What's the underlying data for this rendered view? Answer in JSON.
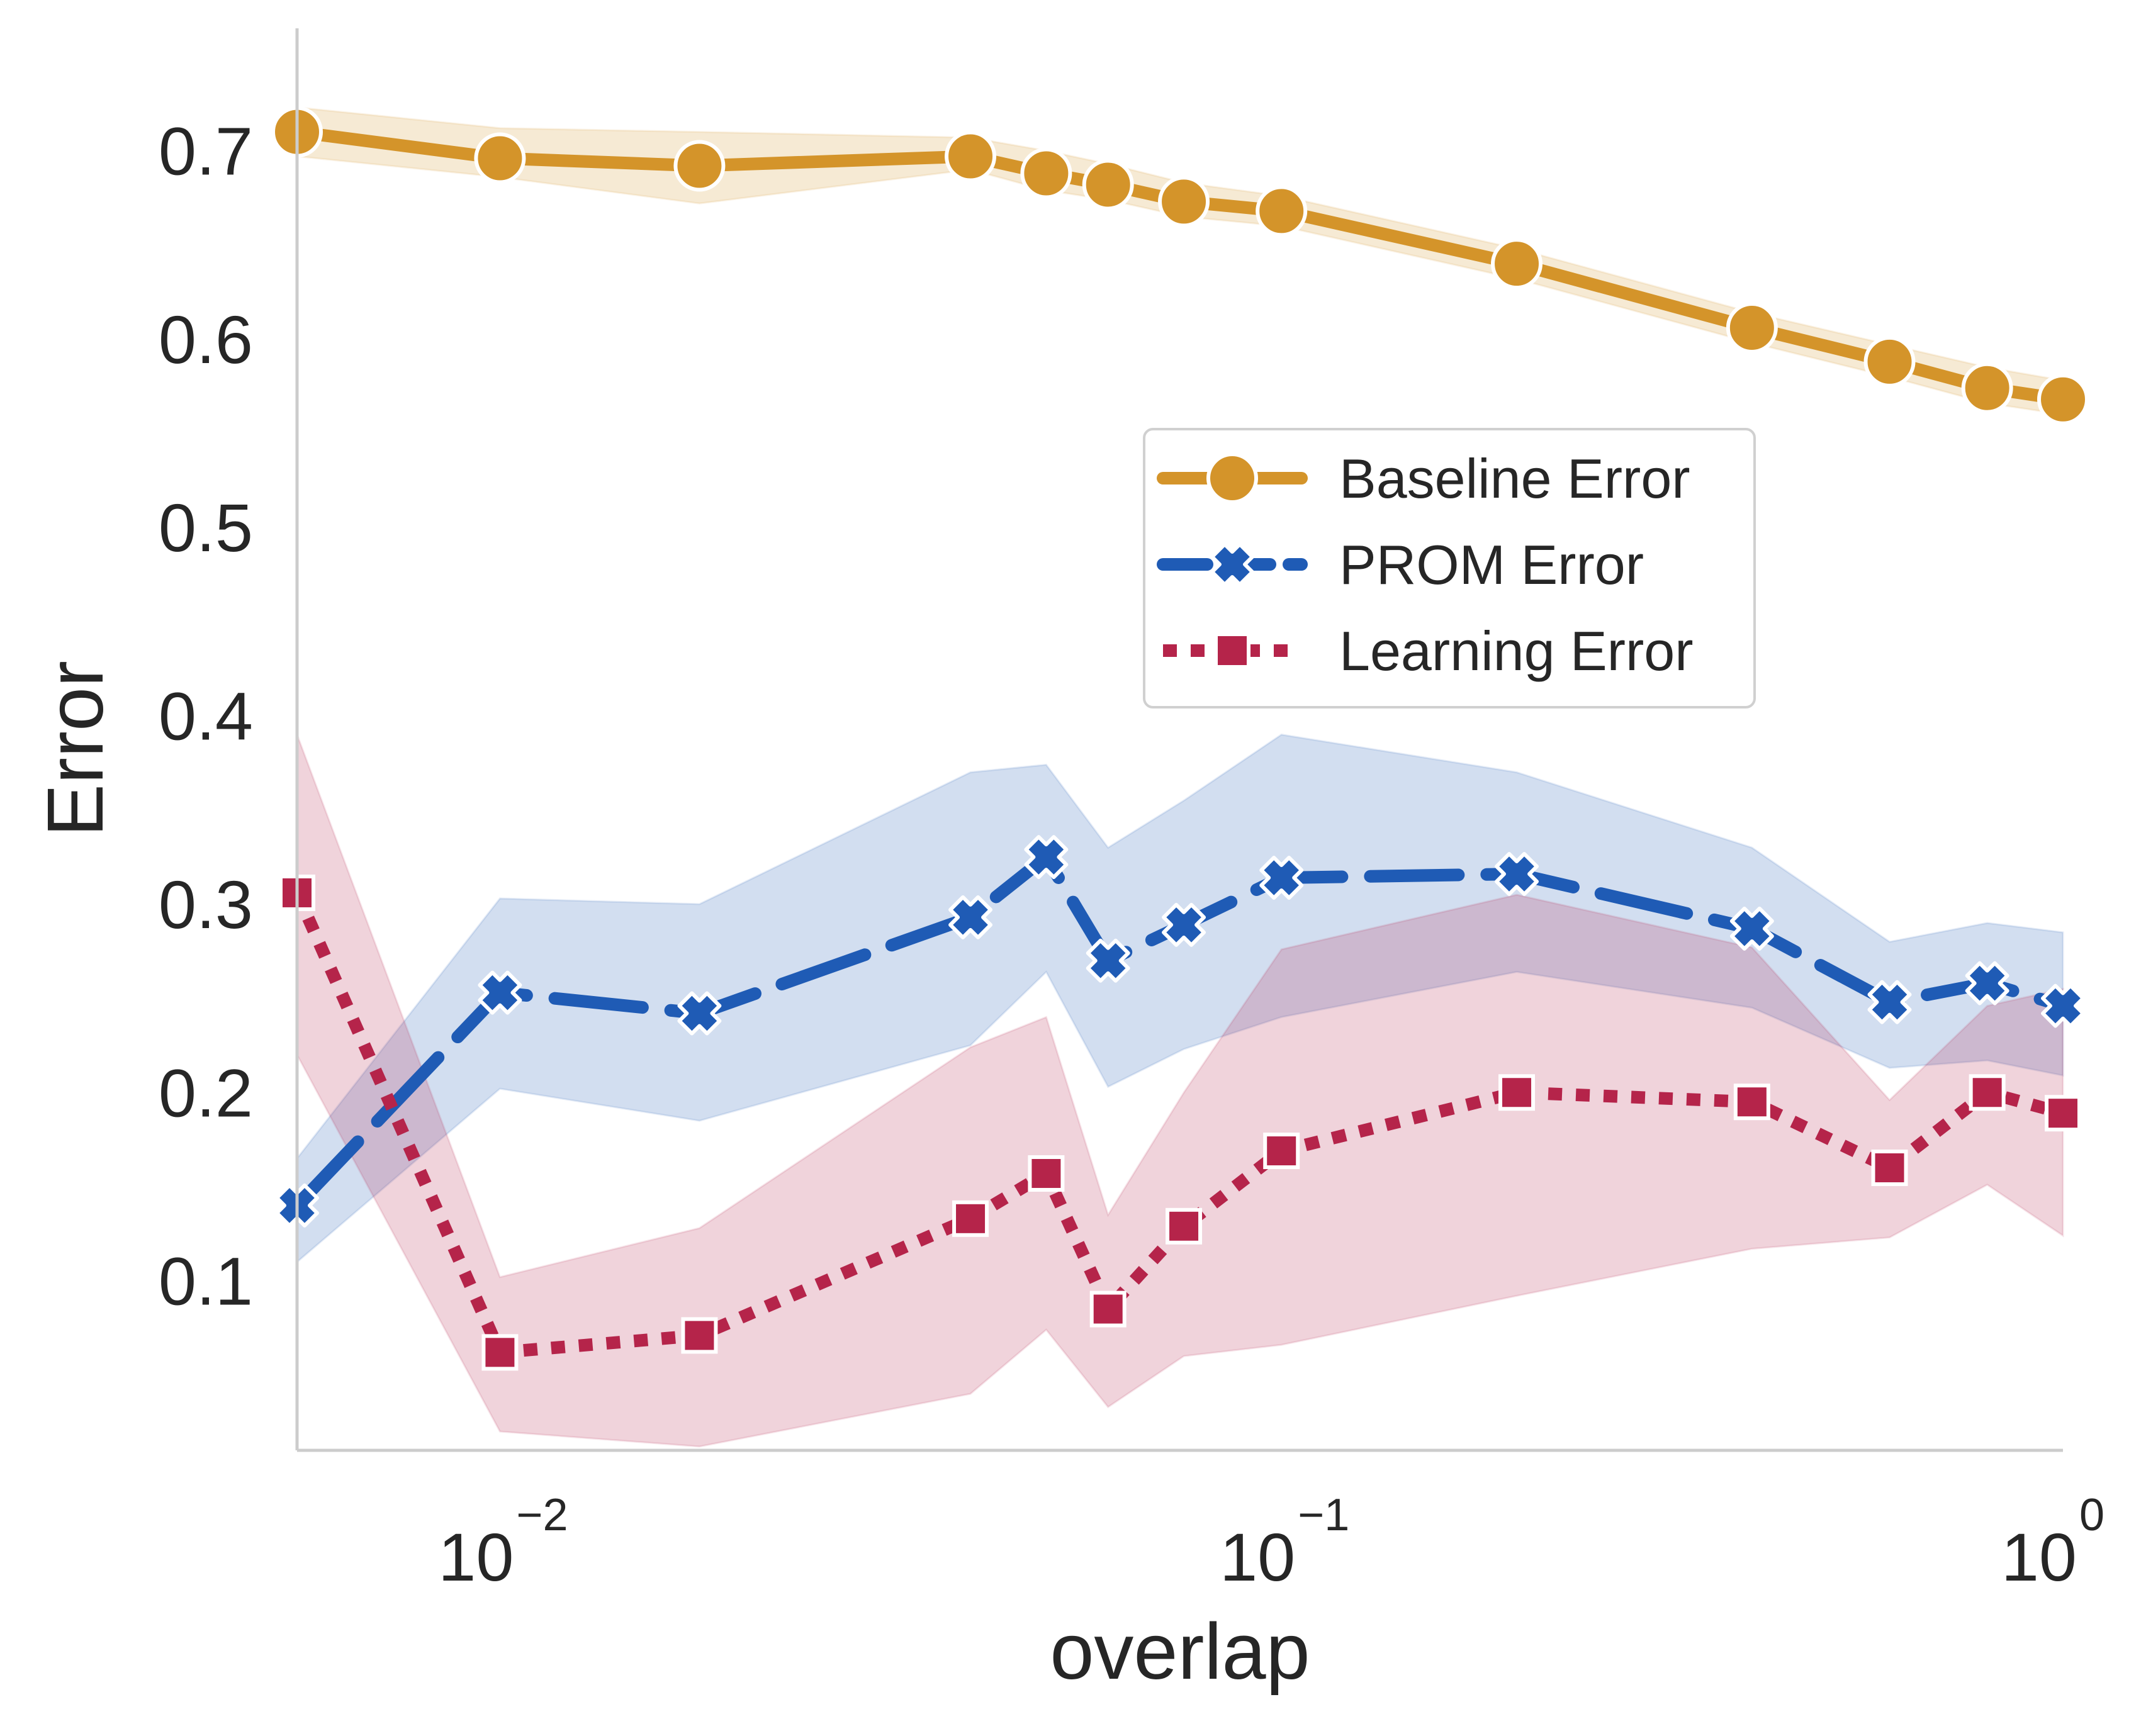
{
  "chart_data": {
    "type": "line",
    "title": "",
    "xlabel": "overlap",
    "ylabel": "Error",
    "xscale": "log",
    "xlim": [
      0.0055,
      1.0
    ],
    "ylim": [
      0.01,
      0.765
    ],
    "x": [
      0.0055,
      0.01,
      0.018,
      0.04,
      0.05,
      0.06,
      0.075,
      0.1,
      0.2,
      0.4,
      0.6,
      0.8,
      1.0
    ],
    "x_ticks": [
      {
        "value": 0.01,
        "base": "10",
        "exp": "−2"
      },
      {
        "value": 0.1,
        "base": "10",
        "exp": "−1"
      },
      {
        "value": 1.0,
        "base": "10",
        "exp": "0"
      }
    ],
    "y_ticks": [
      {
        "value": 0.1,
        "label": "0.1"
      },
      {
        "value": 0.2,
        "label": "0.2"
      },
      {
        "value": 0.3,
        "label": "0.3"
      },
      {
        "value": 0.4,
        "label": "0.4"
      },
      {
        "value": 0.5,
        "label": "0.5"
      },
      {
        "value": 0.6,
        "label": "0.6"
      },
      {
        "value": 0.7,
        "label": "0.7"
      }
    ],
    "grid": false,
    "legend_position": "center-right",
    "series": [
      {
        "name": "Baseline Error",
        "color": "#d4942a",
        "marker": "circle",
        "linestyle": "solid",
        "values": [
          0.71,
          0.696,
          0.692,
          0.697,
          0.688,
          0.682,
          0.673,
          0.668,
          0.64,
          0.606,
          0.588,
          0.574,
          0.568
        ],
        "lower": [
          0.697,
          0.686,
          0.672,
          0.69,
          0.679,
          0.674,
          0.665,
          0.66,
          0.632,
          0.598,
          0.58,
          0.566,
          0.56
        ],
        "upper": [
          0.723,
          0.712,
          0.71,
          0.707,
          0.7,
          0.693,
          0.683,
          0.676,
          0.648,
          0.614,
          0.597,
          0.585,
          0.578
        ]
      },
      {
        "name": "PROM Error",
        "color": "#1f5bb5",
        "marker": "x",
        "linestyle": "dashed",
        "values": [
          0.14,
          0.253,
          0.242,
          0.293,
          0.325,
          0.27,
          0.289,
          0.314,
          0.316,
          0.287,
          0.248,
          0.258,
          0.246
        ],
        "lower": [
          0.11,
          0.202,
          0.185,
          0.225,
          0.264,
          0.203,
          0.223,
          0.24,
          0.264,
          0.245,
          0.213,
          0.217,
          0.209
        ],
        "upper": [
          0.165,
          0.303,
          0.3,
          0.37,
          0.374,
          0.33,
          0.355,
          0.39,
          0.37,
          0.33,
          0.28,
          0.29,
          0.285
        ]
      },
      {
        "name": "Learning Error",
        "color": "#b5244a",
        "marker": "square",
        "linestyle": "dotted",
        "values": [
          0.306,
          0.062,
          0.071,
          0.133,
          0.157,
          0.085,
          0.129,
          0.169,
          0.2,
          0.195,
          0.16,
          0.2,
          0.189
        ],
        "lower": [
          0.22,
          0.02,
          0.012,
          0.04,
          0.074,
          0.033,
          0.06,
          0.066,
          0.092,
          0.117,
          0.123,
          0.151,
          0.124
        ],
        "upper": [
          0.39,
          0.102,
          0.128,
          0.224,
          0.24,
          0.135,
          0.2,
          0.276,
          0.305,
          0.277,
          0.196,
          0.246,
          0.255
        ]
      }
    ]
  }
}
